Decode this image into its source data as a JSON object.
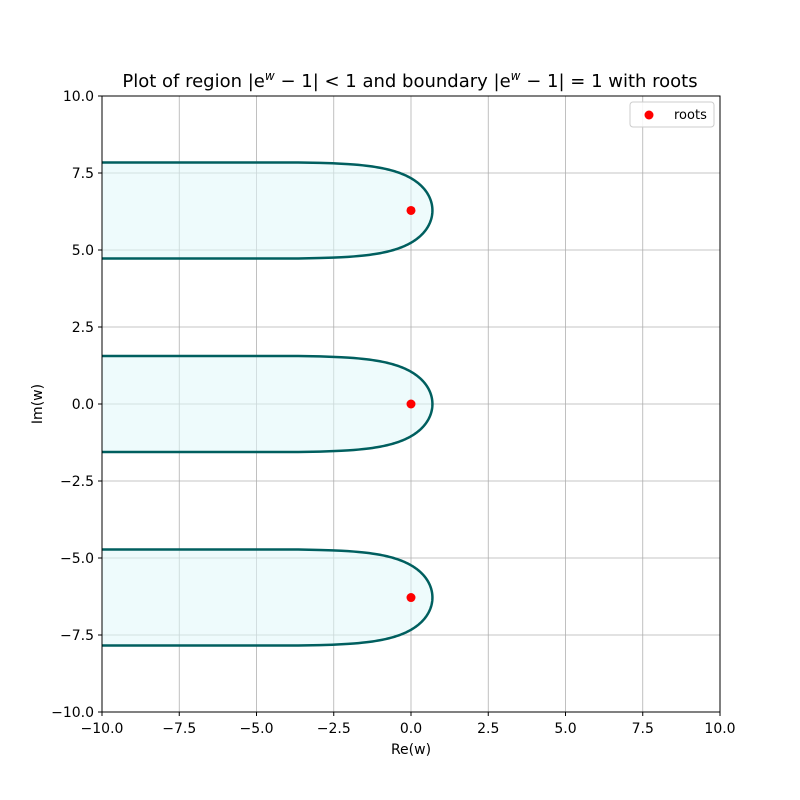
{
  "chart_data": {
    "type": "area",
    "title_parts": {
      "a": "Plot of region |e",
      "sup1": "w",
      "b": " − 1| < 1 and boundary |e",
      "sup2": "w",
      "c": " − 1| = 1 with roots"
    },
    "xlabel": "Re(w)",
    "ylabel": "Im(w)",
    "xlim": [
      -10.0,
      10.0
    ],
    "ylim": [
      -10.0,
      10.0
    ],
    "xticks": [
      -10.0,
      -7.5,
      -5.0,
      -2.5,
      0.0,
      2.5,
      5.0,
      7.5,
      10.0
    ],
    "yticks": [
      -10.0,
      -7.5,
      -5.0,
      -2.5,
      0.0,
      2.5,
      5.0,
      7.5,
      10.0
    ],
    "xtick_labels": [
      "−10.0",
      "−7.5",
      "−5.0",
      "−2.5",
      "0.0",
      "2.5",
      "5.0",
      "7.5",
      "10.0"
    ],
    "ytick_labels": [
      "−10.0",
      "−7.5",
      "−5.0",
      "−2.5",
      "0.0",
      "2.5",
      "5.0",
      "7.5",
      "10.0"
    ],
    "grid": true,
    "regions": [
      {
        "center_im": 6.2832
      },
      {
        "center_im": 0.0
      },
      {
        "center_im": -6.2832
      }
    ],
    "roots": [
      {
        "x": 0.0,
        "y": 6.2832
      },
      {
        "x": 0.0,
        "y": 0.0
      },
      {
        "x": 0.0,
        "y": -6.2832
      }
    ],
    "legend": {
      "label": "roots",
      "position": "top-right"
    },
    "colors": {
      "boundary": "#005f5f",
      "fill": "#e0f7fa",
      "roots": "#ff0000",
      "grid": "#b0b0b0"
    }
  }
}
